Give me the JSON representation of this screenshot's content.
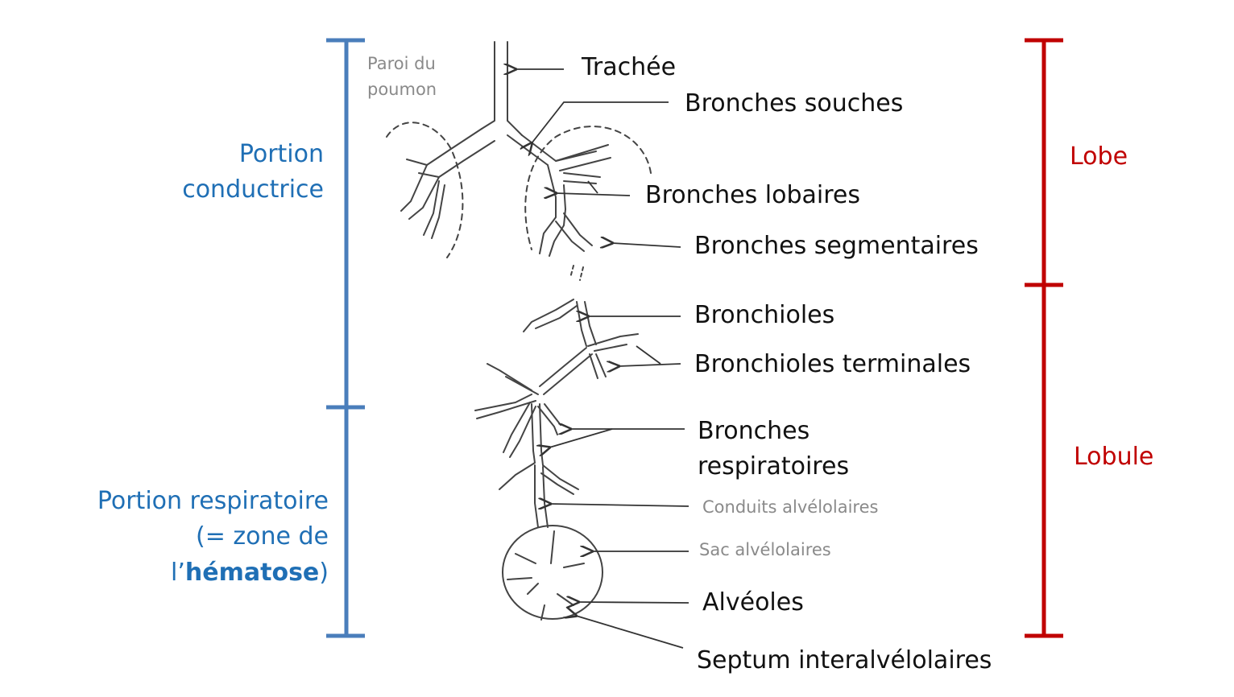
{
  "wall_label_1": "Paroi du",
  "wall_label_2": "poumon",
  "labels": {
    "trachee": "Trachée",
    "bronches_souches": "Bronches souches",
    "bronches_lobaires": "Bronches lobaires",
    "bronches_segmentaires": "Bronches segmentaires",
    "bronchioles": "Bronchioles",
    "bronchioles_terminales": "Bronchioles terminales",
    "bronches_resp_1": "Bronches",
    "bronches_resp_2": "respiratoires",
    "conduits": "Conduits alvélolaires",
    "sac": "Sac alvélolaires",
    "alveoles": "Alvéoles",
    "septum": "Septum interalvélolaires"
  },
  "left_groups": {
    "conductrice_1": "Portion",
    "conductrice_2": "conductrice",
    "respiratoire_1": "Portion respiratoire",
    "respiratoire_2": "(= zone de",
    "respiratoire_3_prefix": "l’",
    "respiratoire_3_bold": "hématose",
    "respiratoire_3_suffix": ")"
  },
  "right_groups": {
    "lobe": "Lobe",
    "lobule": "Lobule"
  },
  "colors": {
    "blue": "#4a7ebb",
    "blue_text": "#1f6fb5",
    "red": "#c00000",
    "ink": "#333333"
  }
}
